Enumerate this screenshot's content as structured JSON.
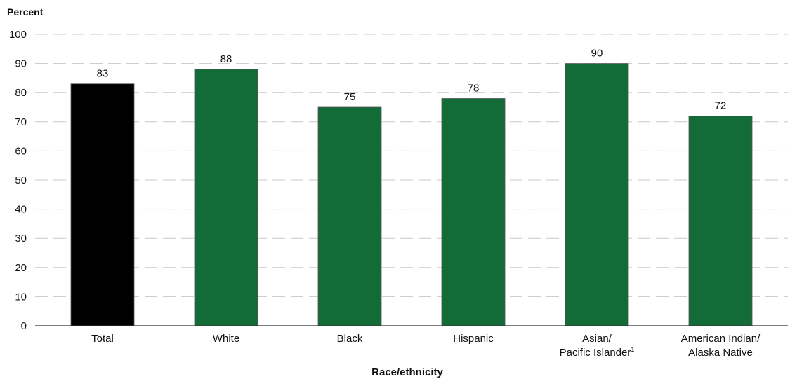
{
  "chart_data": {
    "type": "bar",
    "title": "",
    "ylabel": "Percent",
    "xlabel": "Race/ethnicity",
    "ylim": [
      0,
      100
    ],
    "yticks": [
      0,
      10,
      20,
      30,
      40,
      50,
      60,
      70,
      80,
      90,
      100
    ],
    "grid": true,
    "categories": [
      {
        "label_lines": [
          "Total"
        ],
        "superscript": ""
      },
      {
        "label_lines": [
          "White"
        ],
        "superscript": ""
      },
      {
        "label_lines": [
          "Black"
        ],
        "superscript": ""
      },
      {
        "label_lines": [
          "Hispanic"
        ],
        "superscript": ""
      },
      {
        "label_lines": [
          "Asian/",
          "Pacific Islander"
        ],
        "superscript": "1"
      },
      {
        "label_lines": [
          "American Indian/",
          "Alaska Native"
        ],
        "superscript": ""
      }
    ],
    "values": [
      83,
      88,
      75,
      78,
      90,
      72
    ],
    "data_labels": [
      "83",
      "88",
      "75",
      "78",
      "90",
      "72"
    ],
    "colors": [
      "#000000",
      "#136b38",
      "#136b38",
      "#136b38",
      "#136b38",
      "#136b38"
    ]
  }
}
